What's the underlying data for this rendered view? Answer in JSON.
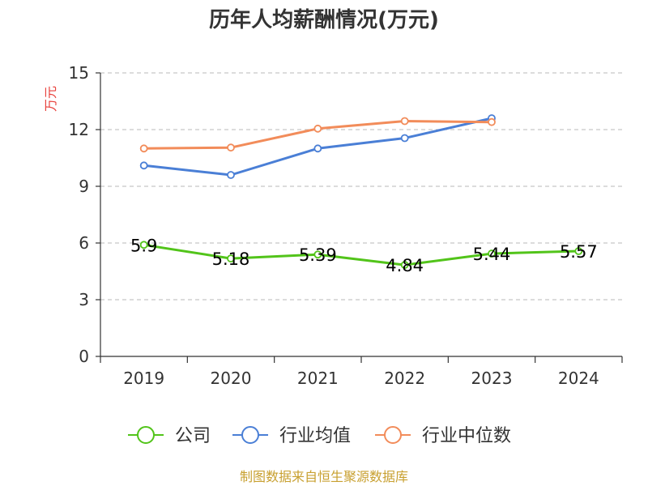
{
  "chart_data": {
    "type": "line",
    "title": "历年人均薪酬情况(万元)",
    "ylabel": "万元",
    "xlabel": "",
    "categories": [
      "2019",
      "2020",
      "2021",
      "2022",
      "2023",
      "2024"
    ],
    "ylim": [
      0,
      15
    ],
    "yticks": [
      "0",
      "3",
      "6",
      "9",
      "12",
      "15"
    ],
    "grid": "horizontal-dashed",
    "legend_position": "bottom",
    "series": [
      {
        "name": "公司",
        "color": "#52c41a",
        "values": [
          5.9,
          5.18,
          5.39,
          4.84,
          5.44,
          5.57
        ],
        "data_labels": [
          "5.9",
          "5.18",
          "5.39",
          "4.84",
          "5.44",
          "5.57"
        ]
      },
      {
        "name": "行业均值",
        "color": "#4a7fd6",
        "values": [
          10.1,
          9.6,
          11.0,
          11.55,
          12.6,
          null
        ]
      },
      {
        "name": "行业中位数",
        "color": "#f28c5a",
        "values": [
          11.0,
          11.05,
          12.05,
          12.45,
          12.4,
          null
        ]
      }
    ]
  },
  "source_note": "制图数据来自恒生聚源数据库"
}
